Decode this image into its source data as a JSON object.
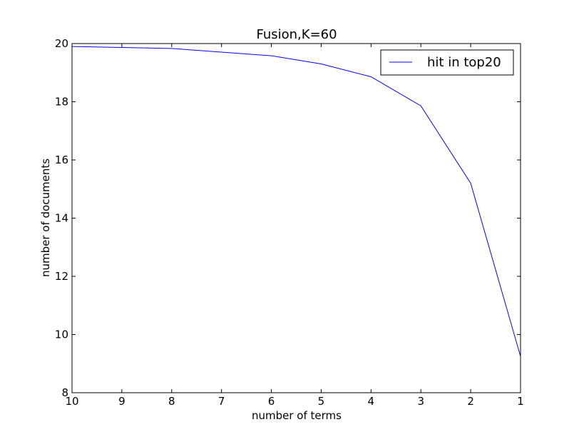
{
  "chart_data": {
    "type": "line",
    "title": "Fusion,K=60",
    "xlabel": "number of terms",
    "ylabel": "number of documents",
    "xlim": [
      10,
      1
    ],
    "ylim": [
      8,
      20
    ],
    "x_ticks": [
      10,
      9,
      8,
      7,
      6,
      5,
      4,
      3,
      2,
      1
    ],
    "y_ticks": [
      8,
      10,
      12,
      14,
      16,
      18,
      20
    ],
    "x_tick_labels": [
      "10",
      "9",
      "8",
      "7",
      "6",
      "5",
      "4",
      "3",
      "2",
      "1"
    ],
    "y_tick_labels": [
      "8",
      "10",
      "12",
      "14",
      "16",
      "18",
      "20"
    ],
    "grid": false,
    "legend_position": "top-right",
    "series": [
      {
        "name": "hit in top20",
        "color": "#0000ff",
        "x": [
          10,
          8,
          6,
          5,
          4,
          3,
          2,
          1
        ],
        "y": [
          19.9,
          19.83,
          19.58,
          19.3,
          18.86,
          17.86,
          15.2,
          9.25
        ]
      }
    ]
  }
}
